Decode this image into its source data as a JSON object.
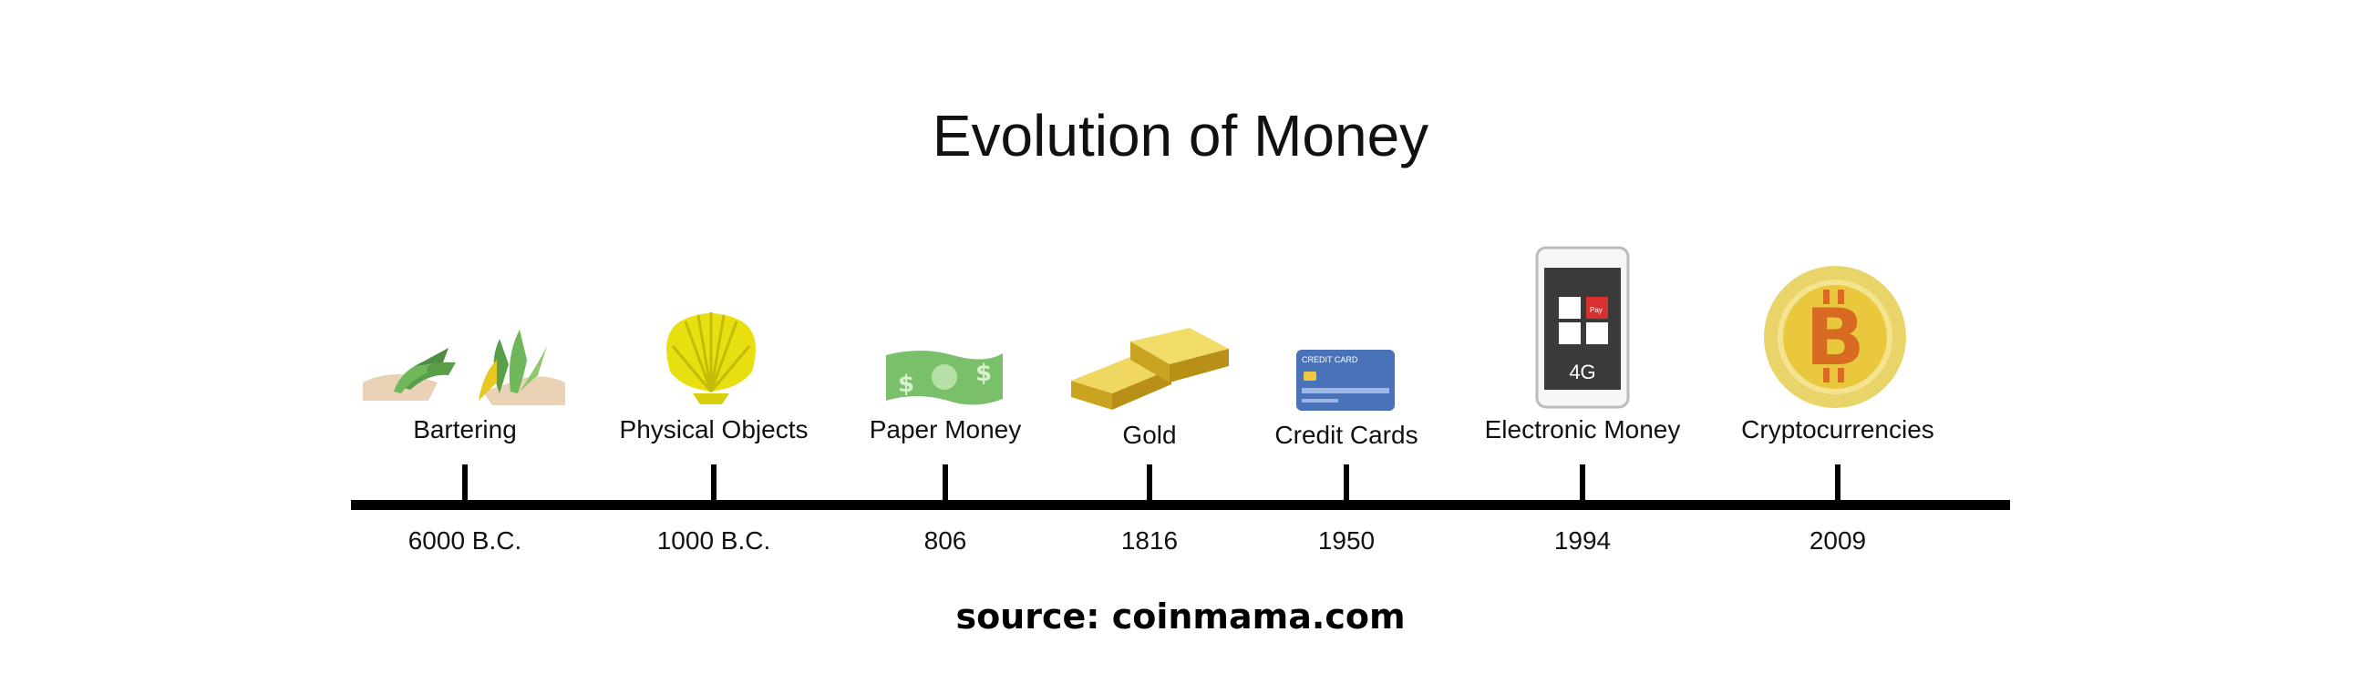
{
  "title": "Evolution of Money",
  "source": "source: coinmama.com",
  "milestones": [
    {
      "label": "Bartering",
      "year": "6000 B.C.",
      "icon": "bartering-hands-icon"
    },
    {
      "label": "Physical Objects",
      "year": "1000 B.C.",
      "icon": "seashell-icon"
    },
    {
      "label": "Paper Money",
      "year": "806",
      "icon": "banknote-icon"
    },
    {
      "label": "Gold",
      "year": "1816",
      "icon": "gold-bars-icon"
    },
    {
      "label": "Credit Cards",
      "year": "1950",
      "icon": "credit-card-icon"
    },
    {
      "label": "Electronic Money",
      "year": "1994",
      "icon": "smartphone-icon"
    },
    {
      "label": "Cryptocurrencies",
      "year": "2009",
      "icon": "bitcoin-icon"
    }
  ],
  "icon_text": {
    "credit_card": "CREDIT CARD",
    "phone_network": "4G",
    "phone_app": "Pay"
  },
  "colors": {
    "axis": "#000000",
    "shell": "#e8df10",
    "banknote": "#7ac06a",
    "gold": "#d8b82a",
    "card": "#4a72b8",
    "bitcoin_outer": "#e9d46a",
    "bitcoin_symbol": "#d86a22"
  }
}
